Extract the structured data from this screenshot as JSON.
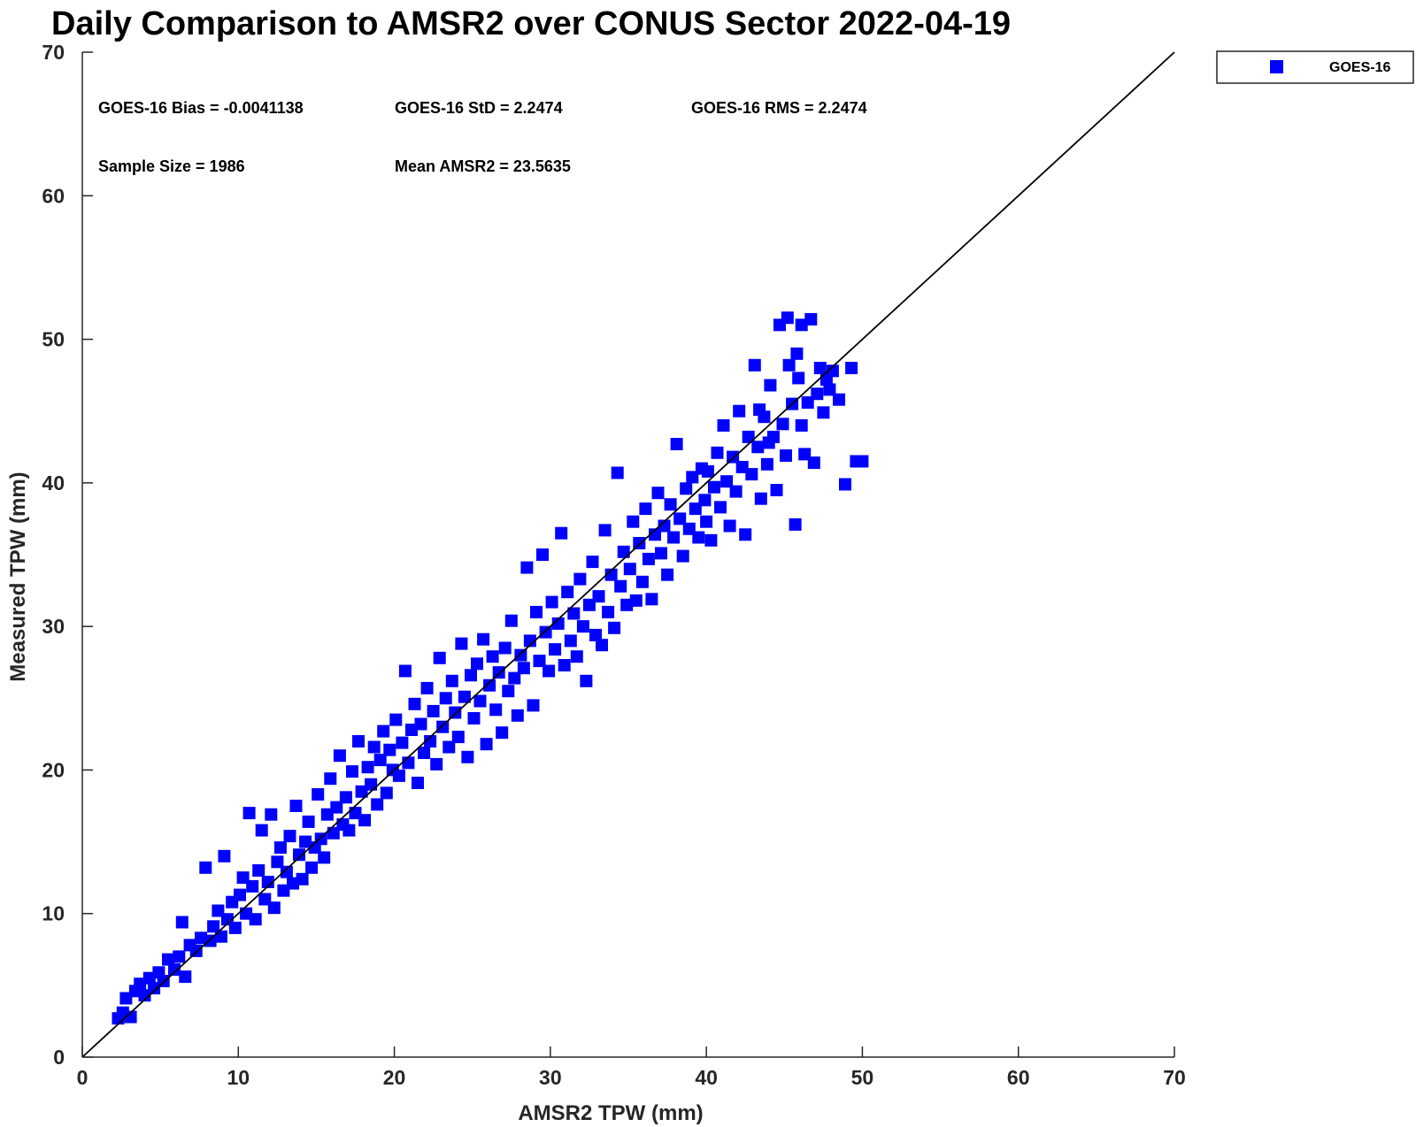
{
  "chart_data": {
    "type": "scatter",
    "title": "Daily Comparison to AMSR2 over CONUS Sector 2022-04-19",
    "xlabel": "AMSR2 TPW (mm)",
    "ylabel": "Measured TPW (mm)",
    "xlim": [
      0,
      70
    ],
    "ylim": [
      0,
      70
    ],
    "xticks": [
      "0",
      "10",
      "20",
      "30",
      "40",
      "50",
      "60",
      "70"
    ],
    "yticks": [
      "0",
      "10",
      "20",
      "30",
      "40",
      "50",
      "60",
      "70"
    ],
    "grid": false,
    "legend_position": "top-right, outside plot",
    "reference_line": {
      "from": [
        0,
        0
      ],
      "to": [
        70,
        70
      ],
      "color": "#000000"
    },
    "stats": [
      "GOES-16 Bias = -0.0041138",
      "GOES-16 StD = 2.2474",
      "GOES-16 RMS = 2.2474",
      "Sample Size = 1986",
      "Mean AMSR2 = 23.5635"
    ],
    "series": [
      {
        "name": "GOES-16",
        "color": "#0000ff",
        "marker": "square",
        "points": [
          [
            2.3,
            2.7
          ],
          [
            2.6,
            3.1
          ],
          [
            2.8,
            4.1
          ],
          [
            3.1,
            2.8
          ],
          [
            3.4,
            4.6
          ],
          [
            3.7,
            5.1
          ],
          [
            4.0,
            4.3
          ],
          [
            4.3,
            5.5
          ],
          [
            4.6,
            4.8
          ],
          [
            4.9,
            5.9
          ],
          [
            5.2,
            5.3
          ],
          [
            5.5,
            6.8
          ],
          [
            5.9,
            6.1
          ],
          [
            6.2,
            7.0
          ],
          [
            6.4,
            9.4
          ],
          [
            6.6,
            5.6
          ],
          [
            6.9,
            7.8
          ],
          [
            7.3,
            7.4
          ],
          [
            7.6,
            8.3
          ],
          [
            7.9,
            13.2
          ],
          [
            8.2,
            8.1
          ],
          [
            8.4,
            9.1
          ],
          [
            8.7,
            10.2
          ],
          [
            8.9,
            8.4
          ],
          [
            9.1,
            14.0
          ],
          [
            9.3,
            9.6
          ],
          [
            9.6,
            10.8
          ],
          [
            9.8,
            9.0
          ],
          [
            10.1,
            11.3
          ],
          [
            10.3,
            12.5
          ],
          [
            10.5,
            10.0
          ],
          [
            10.7,
            17.0
          ],
          [
            10.9,
            11.9
          ],
          [
            11.1,
            9.6
          ],
          [
            11.3,
            13.0
          ],
          [
            11.5,
            15.8
          ],
          [
            11.7,
            11.0
          ],
          [
            11.9,
            12.2
          ],
          [
            12.1,
            16.9
          ],
          [
            12.3,
            10.4
          ],
          [
            12.5,
            13.6
          ],
          [
            12.7,
            14.6
          ],
          [
            12.9,
            11.6
          ],
          [
            13.1,
            12.9
          ],
          [
            13.3,
            15.4
          ],
          [
            13.5,
            12.1
          ],
          [
            13.7,
            17.5
          ],
          [
            13.9,
            14.1
          ],
          [
            14.1,
            12.4
          ],
          [
            14.3,
            15.0
          ],
          [
            14.5,
            16.4
          ],
          [
            14.7,
            13.2
          ],
          [
            14.9,
            14.6
          ],
          [
            15.1,
            18.3
          ],
          [
            15.3,
            15.2
          ],
          [
            15.5,
            13.9
          ],
          [
            15.7,
            16.9
          ],
          [
            15.9,
            19.4
          ],
          [
            16.1,
            15.6
          ],
          [
            16.3,
            17.4
          ],
          [
            16.5,
            21.0
          ],
          [
            16.7,
            16.2
          ],
          [
            16.9,
            18.1
          ],
          [
            17.1,
            15.8
          ],
          [
            17.3,
            19.9
          ],
          [
            17.5,
            17.0
          ],
          [
            17.7,
            22.0
          ],
          [
            17.9,
            18.5
          ],
          [
            18.1,
            16.5
          ],
          [
            18.3,
            20.2
          ],
          [
            18.5,
            19.0
          ],
          [
            18.7,
            21.6
          ],
          [
            18.9,
            17.6
          ],
          [
            19.1,
            20.7
          ],
          [
            19.3,
            22.7
          ],
          [
            19.5,
            18.4
          ],
          [
            19.7,
            21.4
          ],
          [
            19.9,
            20.0
          ],
          [
            20.1,
            23.5
          ],
          [
            20.3,
            19.6
          ],
          [
            20.5,
            21.9
          ],
          [
            20.7,
            26.9
          ],
          [
            20.9,
            20.5
          ],
          [
            21.1,
            22.8
          ],
          [
            21.3,
            24.6
          ],
          [
            21.5,
            19.1
          ],
          [
            21.7,
            23.2
          ],
          [
            21.9,
            21.2
          ],
          [
            22.1,
            25.7
          ],
          [
            22.3,
            22.0
          ],
          [
            22.5,
            24.1
          ],
          [
            22.7,
            20.4
          ],
          [
            22.9,
            27.8
          ],
          [
            23.1,
            23.0
          ],
          [
            23.3,
            25.0
          ],
          [
            23.5,
            21.6
          ],
          [
            23.7,
            26.2
          ],
          [
            23.9,
            24.0
          ],
          [
            24.1,
            22.3
          ],
          [
            24.3,
            28.8
          ],
          [
            24.5,
            25.1
          ],
          [
            24.7,
            20.9
          ],
          [
            24.9,
            26.6
          ],
          [
            25.1,
            23.6
          ],
          [
            25.3,
            27.4
          ],
          [
            25.5,
            24.8
          ],
          [
            25.7,
            29.1
          ],
          [
            25.9,
            21.8
          ],
          [
            26.1,
            25.9
          ],
          [
            26.3,
            27.9
          ],
          [
            26.5,
            24.2
          ],
          [
            26.7,
            26.8
          ],
          [
            26.9,
            22.6
          ],
          [
            27.1,
            28.5
          ],
          [
            27.3,
            25.5
          ],
          [
            27.5,
            30.4
          ],
          [
            27.7,
            26.4
          ],
          [
            27.9,
            23.8
          ],
          [
            28.1,
            28.0
          ],
          [
            28.3,
            27.1
          ],
          [
            28.5,
            34.1
          ],
          [
            28.7,
            29.0
          ],
          [
            28.9,
            24.5
          ],
          [
            29.1,
            31.0
          ],
          [
            29.3,
            27.6
          ],
          [
            29.5,
            35.0
          ],
          [
            29.7,
            29.6
          ],
          [
            29.9,
            26.9
          ],
          [
            30.1,
            31.7
          ],
          [
            30.3,
            28.4
          ],
          [
            30.5,
            30.2
          ],
          [
            30.7,
            36.5
          ],
          [
            30.9,
            27.3
          ],
          [
            31.1,
            32.4
          ],
          [
            31.3,
            29.0
          ],
          [
            31.5,
            30.9
          ],
          [
            31.7,
            27.9
          ],
          [
            31.9,
            33.3
          ],
          [
            32.1,
            30.0
          ],
          [
            32.3,
            26.2
          ],
          [
            32.5,
            31.5
          ],
          [
            32.7,
            34.5
          ],
          [
            32.9,
            29.4
          ],
          [
            33.1,
            32.1
          ],
          [
            33.3,
            28.7
          ],
          [
            33.5,
            36.7
          ],
          [
            33.7,
            31.0
          ],
          [
            33.9,
            33.6
          ],
          [
            34.1,
            29.9
          ],
          [
            34.3,
            40.7
          ],
          [
            34.5,
            32.8
          ],
          [
            34.7,
            35.2
          ],
          [
            34.9,
            31.5
          ],
          [
            35.1,
            34.0
          ],
          [
            35.3,
            37.3
          ],
          [
            35.5,
            31.8
          ],
          [
            35.7,
            35.8
          ],
          [
            35.9,
            33.1
          ],
          [
            36.1,
            38.2
          ],
          [
            36.3,
            34.7
          ],
          [
            36.5,
            31.9
          ],
          [
            36.7,
            36.4
          ],
          [
            36.9,
            39.3
          ],
          [
            37.1,
            35.1
          ],
          [
            37.3,
            37.0
          ],
          [
            37.5,
            33.6
          ],
          [
            37.7,
            38.5
          ],
          [
            37.9,
            36.2
          ],
          [
            38.1,
            42.7
          ],
          [
            38.3,
            37.5
          ],
          [
            38.5,
            34.9
          ],
          [
            38.7,
            39.6
          ],
          [
            38.9,
            36.8
          ],
          [
            39.1,
            40.4
          ],
          [
            39.3,
            38.2
          ],
          [
            39.5,
            36.2
          ],
          [
            39.7,
            41.0
          ],
          [
            39.9,
            38.8
          ],
          [
            40.1,
            40.8
          ],
          [
            40.3,
            36.0
          ],
          [
            40.5,
            39.7
          ],
          [
            40.7,
            42.1
          ],
          [
            40.9,
            38.3
          ],
          [
            41.1,
            44.0
          ],
          [
            41.3,
            40.1
          ],
          [
            41.5,
            37.0
          ],
          [
            41.7,
            41.8
          ],
          [
            41.9,
            39.4
          ],
          [
            42.1,
            45.0
          ],
          [
            42.3,
            41.1
          ],
          [
            42.5,
            36.4
          ],
          [
            42.7,
            43.2
          ],
          [
            42.9,
            40.6
          ],
          [
            43.1,
            48.2
          ],
          [
            43.3,
            42.5
          ],
          [
            43.5,
            38.9
          ],
          [
            43.7,
            44.6
          ],
          [
            43.9,
            41.3
          ],
          [
            44.1,
            46.8
          ],
          [
            44.3,
            43.2
          ],
          [
            44.5,
            39.5
          ],
          [
            44.7,
            51.0
          ],
          [
            44.9,
            44.1
          ],
          [
            45.1,
            41.9
          ],
          [
            45.3,
            48.2
          ],
          [
            45.5,
            45.5
          ],
          [
            45.7,
            37.1
          ],
          [
            45.9,
            47.3
          ],
          [
            46.1,
            44.0
          ],
          [
            46.3,
            42.0
          ],
          [
            46.5,
            45.6
          ],
          [
            46.7,
            51.4
          ],
          [
            46.9,
            41.4
          ],
          [
            47.1,
            46.2
          ],
          [
            47.3,
            48.0
          ],
          [
            47.5,
            44.9
          ],
          [
            47.7,
            47.2
          ],
          [
            47.9,
            46.5
          ],
          [
            48.1,
            47.8
          ],
          [
            48.5,
            45.8
          ],
          [
            48.9,
            39.9
          ],
          [
            49.3,
            48.0
          ],
          [
            49.6,
            41.5
          ],
          [
            50.0,
            41.5
          ],
          [
            45.2,
            51.5
          ],
          [
            46.1,
            51.0
          ],
          [
            45.8,
            49.0
          ],
          [
            43.4,
            45.1
          ],
          [
            44.0,
            42.8
          ],
          [
            40.0,
            37.3
          ]
        ]
      }
    ]
  }
}
